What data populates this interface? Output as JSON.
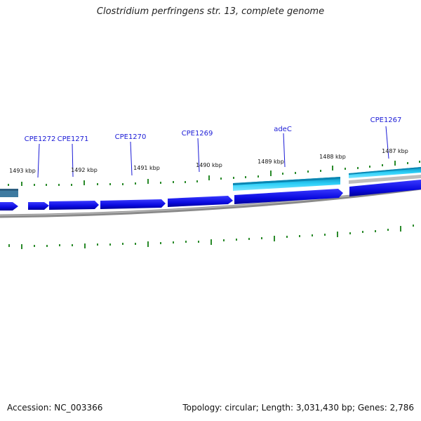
{
  "title": "Clostridium perfringens str. 13, complete genome",
  "accession_text": "Accession: NC_003366",
  "summary_text": "Topology: circular; Length: 3,031,430 bp; Genes: 2,786",
  "colors": {
    "forward_gene": "#1010e8",
    "reverse_gene": "#22c8f0",
    "backbone": "#7a7a7a",
    "tick": "#2a8a2a",
    "label": "#1a1ad6"
  },
  "gene_labels": [
    "CPE1272",
    "CPE1271",
    "CPE1270",
    "CPE1269",
    "adeC",
    "CPE1267"
  ],
  "kbp_labels": [
    "1493 kbp",
    "1492 kbp",
    "1491 kbp",
    "1490 kbp",
    "1489 kbp",
    "1488 kbp",
    "1487 kbp"
  ]
}
